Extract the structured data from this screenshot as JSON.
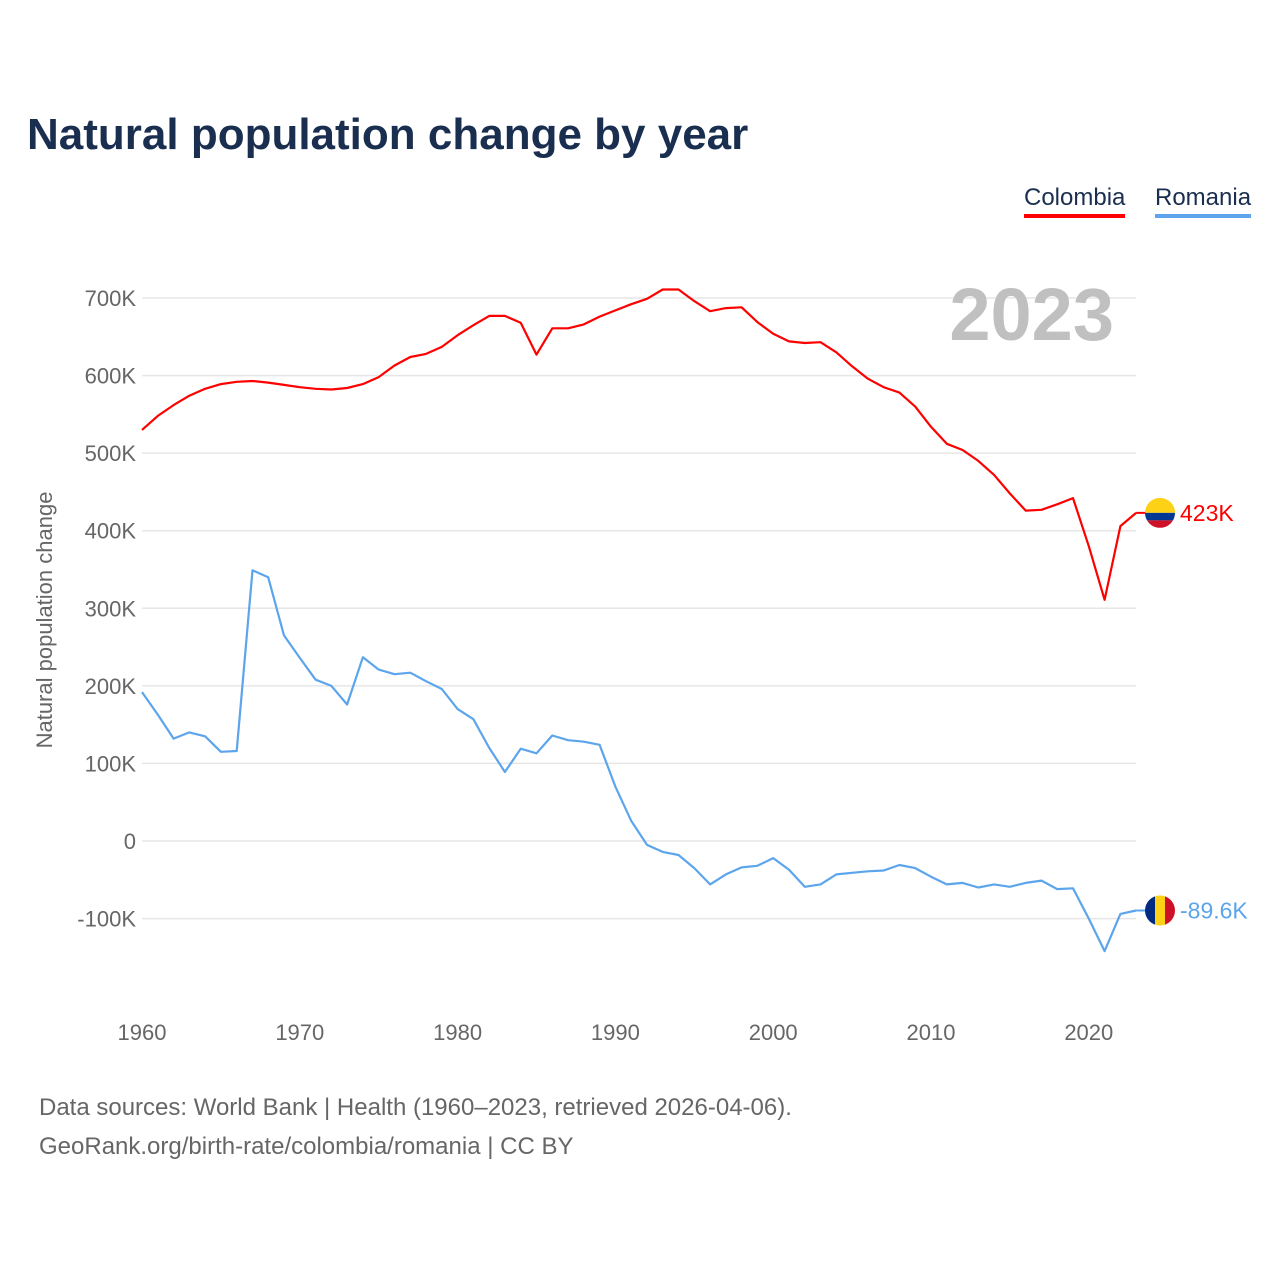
{
  "title": "Natural population change by year",
  "legend": [
    {
      "label": "Colombia",
      "color": "#ff0000"
    },
    {
      "label": "Romania",
      "color": "#5ca5ec"
    }
  ],
  "year_label": "2023",
  "source_line1": "Data sources: World Bank | Health (1960–2023, retrieved 2026-04-06).",
  "source_line2": "GeoRank.org/birth-rate/colombia/romania | CC BY",
  "chart_data": {
    "type": "line",
    "title": "Natural population change by year",
    "xlabel": "",
    "ylabel": "Natural population change",
    "xlim": [
      1960,
      2023
    ],
    "ylim": [
      -200000,
      750000
    ],
    "x_ticks": [
      1960,
      1970,
      1980,
      1990,
      2000,
      2010,
      2020
    ],
    "y_ticks": [
      -100000,
      0,
      100000,
      200000,
      300000,
      400000,
      500000,
      600000,
      700000
    ],
    "y_tick_labels": [
      "-100K",
      "0",
      "100K",
      "200K",
      "300K",
      "400K",
      "500K",
      "600K",
      "700K"
    ],
    "grid": true,
    "legend_position": "top-right",
    "x_start": 1960,
    "series": [
      {
        "name": "Colombia",
        "color": "#ff0000",
        "end_label": "423K",
        "values": [
          530,
          548,
          562,
          574,
          583,
          589,
          592,
          593,
          591,
          588,
          585,
          583,
          582,
          584,
          589,
          598,
          613,
          624,
          628,
          637,
          652,
          665,
          677,
          677,
          668,
          627,
          661,
          661,
          666,
          676,
          684,
          692,
          699,
          711,
          711,
          696,
          683,
          687,
          688,
          669,
          654,
          644,
          642,
          643,
          630,
          612,
          596,
          585,
          578,
          560,
          534,
          512,
          504,
          490,
          472,
          448,
          426,
          427,
          434,
          442,
          380,
          311,
          406,
          423
        ]
      },
      {
        "name": "Romania",
        "color": "#5ca5ec",
        "end_label": "-89.6K",
        "values": [
          192,
          163,
          132,
          140,
          135,
          115,
          116,
          349,
          340,
          265,
          236,
          208,
          200,
          176,
          237,
          221,
          215,
          217,
          206,
          196,
          170,
          157,
          120,
          89,
          119,
          113,
          136,
          130,
          128,
          124,
          70,
          26,
          -5,
          -14,
          -18,
          -35,
          -56,
          -43,
          -34,
          -32,
          -22,
          -37,
          -59,
          -56,
          -43,
          -41,
          -39,
          -38,
          -31,
          -35,
          -46,
          -56,
          -54,
          -60,
          -56,
          -59,
          -54,
          -51,
          -62,
          -61,
          -100,
          -142,
          -94,
          -89.6
        ]
      }
    ],
    "value_unit": "thousands"
  }
}
